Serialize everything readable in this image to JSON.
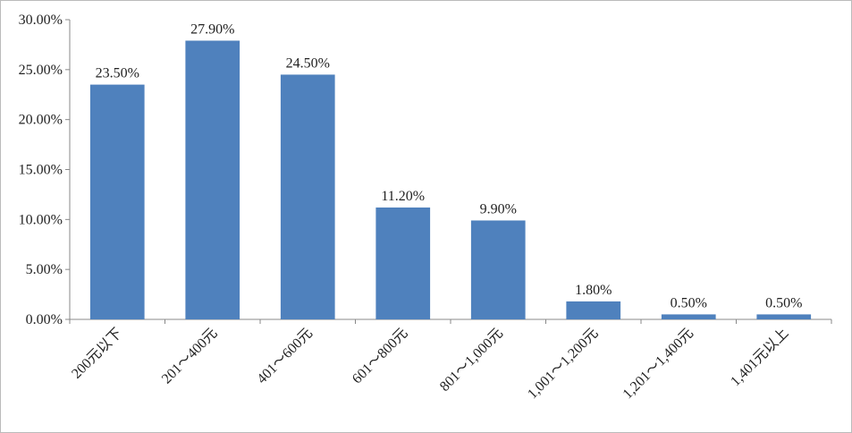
{
  "chart_data": {
    "type": "bar",
    "categories": [
      "200元以下",
      "201～400元",
      "401～600元",
      "601～800元",
      "801～1,000元",
      "1,001～1,200元",
      "1,201～1,400元",
      "1,401元以上"
    ],
    "values": [
      23.5,
      27.9,
      24.5,
      11.2,
      9.9,
      1.8,
      0.5,
      0.5
    ],
    "value_labels": [
      "23.50%",
      "27.90%",
      "24.50%",
      "11.20%",
      "9.90%",
      "1.80%",
      "0.50%",
      "0.50%"
    ],
    "color": "#4f81bd",
    "ylim": [
      0,
      30
    ],
    "yticks": [
      {
        "value": 0,
        "label": "0.00%"
      },
      {
        "value": 5,
        "label": "5.00%"
      },
      {
        "value": 10,
        "label": "10.00%"
      },
      {
        "value": 15,
        "label": "15.00%"
      },
      {
        "value": 20,
        "label": "20.00%"
      },
      {
        "value": 25,
        "label": "25.00%"
      },
      {
        "value": 30,
        "label": "30.00%"
      }
    ],
    "grid": false
  }
}
